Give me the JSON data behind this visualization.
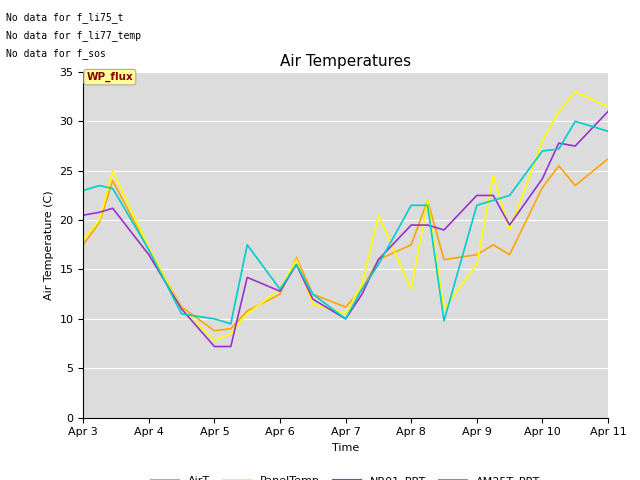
{
  "title": "Air Temperatures",
  "xlabel": "Time",
  "ylabel": "Air Temperature (C)",
  "annotations": [
    "No data for f_li75_t",
    "No data for f_li77_temp",
    "No data for f_sos"
  ],
  "wp_flux_label": "WP_flux",
  "ylim": [
    0,
    35
  ],
  "yticks": [
    0,
    5,
    10,
    15,
    20,
    25,
    30,
    35
  ],
  "xtick_labels": [
    "Apr 3",
    "Apr 4",
    "Apr 5",
    "Apr 6",
    "Apr 7",
    "Apr 8",
    "Apr 9",
    "Apr 10",
    "Apr 11"
  ],
  "colors": {
    "AirT": "#FFA500",
    "PanelTemp": "#FFFF00",
    "NR01_PRT": "#9932CC",
    "AM25T_PRT": "#00CCCC"
  },
  "background_color": "#DCDCDC",
  "figure_bg": "#FFFFFF",
  "x_AirT": [
    0,
    0.25,
    0.45,
    1.0,
    1.5,
    2.0,
    2.25,
    2.5,
    3.0,
    3.25,
    3.5,
    4.0,
    4.25,
    4.5,
    5.0,
    5.25,
    5.5,
    6.0,
    6.25,
    6.5,
    7.0,
    7.25,
    7.5,
    8.0
  ],
  "y_AirT": [
    17.5,
    19.8,
    24.0,
    17.0,
    11.2,
    8.8,
    9.0,
    10.8,
    12.5,
    16.2,
    12.5,
    11.2,
    13.0,
    16.0,
    17.5,
    22.0,
    16.0,
    16.5,
    17.5,
    16.5,
    23.3,
    25.5,
    23.5,
    26.2
  ],
  "x_PanelTemp": [
    0,
    0.25,
    0.45,
    1.0,
    1.5,
    2.0,
    2.25,
    2.5,
    3.0,
    3.25,
    3.5,
    4.0,
    4.25,
    4.5,
    5.0,
    5.25,
    5.5,
    6.0,
    6.25,
    6.5,
    7.0,
    7.25,
    7.5,
    8.0
  ],
  "y_PanelTemp": [
    18.0,
    20.0,
    25.0,
    17.2,
    11.0,
    7.8,
    8.5,
    10.5,
    13.0,
    16.0,
    11.5,
    10.5,
    13.5,
    20.5,
    13.0,
    22.0,
    11.0,
    15.5,
    24.5,
    19.0,
    28.0,
    31.0,
    33.0,
    31.5
  ],
  "x_NR01_PRT": [
    0,
    0.25,
    0.45,
    1.0,
    1.5,
    2.0,
    2.25,
    2.5,
    3.0,
    3.25,
    3.5,
    4.0,
    4.25,
    4.5,
    5.0,
    5.25,
    5.5,
    6.0,
    6.25,
    6.5,
    7.0,
    7.25,
    7.5,
    8.0
  ],
  "y_NR01_PRT": [
    20.5,
    20.8,
    21.2,
    16.5,
    11.0,
    7.2,
    7.2,
    14.2,
    12.8,
    15.5,
    12.0,
    10.0,
    12.5,
    16.0,
    19.5,
    19.5,
    19.0,
    22.5,
    22.5,
    19.5,
    24.2,
    27.8,
    27.5,
    31.0
  ],
  "x_AM25T_PRT": [
    0,
    0.25,
    0.45,
    1.0,
    1.5,
    2.0,
    2.25,
    2.5,
    3.0,
    3.25,
    3.5,
    4.0,
    4.25,
    4.5,
    5.0,
    5.25,
    5.5,
    6.0,
    6.25,
    6.5,
    7.0,
    7.25,
    7.5,
    8.0
  ],
  "y_AM25T_PRT": [
    23.0,
    23.5,
    23.2,
    17.0,
    10.5,
    10.0,
    9.5,
    17.5,
    13.0,
    15.5,
    12.5,
    10.0,
    13.0,
    15.5,
    21.5,
    21.5,
    9.8,
    21.5,
    22.0,
    22.5,
    27.0,
    27.2,
    30.0,
    29.0
  ]
}
